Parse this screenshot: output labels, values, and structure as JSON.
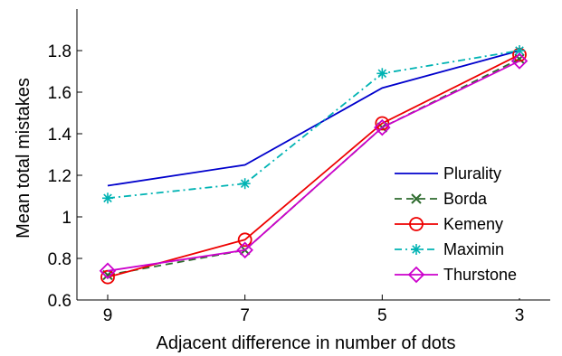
{
  "chart_data": {
    "type": "line",
    "title": "",
    "xlabel": "Adjacent difference in number of dots",
    "ylabel": "Mean total mistakes",
    "categories": [
      "9",
      "7",
      "5",
      "3"
    ],
    "ylim": [
      0.6,
      2.0
    ],
    "yticks": [
      0.6,
      0.8,
      1,
      1.2,
      1.4,
      1.6,
      1.8
    ],
    "ytick_labels": [
      "0.6",
      "0.8",
      "1",
      "1.2",
      "1.4",
      "1.6",
      "1.8"
    ],
    "grid": false,
    "legend_position": "lower-right",
    "series": [
      {
        "name": "Plurality",
        "values": [
          1.15,
          1.25,
          1.62,
          1.8
        ],
        "color": "#0000cc",
        "dash": "solid",
        "marker": "none"
      },
      {
        "name": "Borda",
        "values": [
          0.72,
          0.84,
          1.43,
          1.76
        ],
        "color": "#2e6b2e",
        "dash": "dashed",
        "marker": "x"
      },
      {
        "name": "Kemeny",
        "values": [
          0.71,
          0.89,
          1.45,
          1.78
        ],
        "color": "#ee0000",
        "dash": "solid",
        "marker": "circle"
      },
      {
        "name": "Maximin",
        "values": [
          1.09,
          1.16,
          1.69,
          1.8
        ],
        "color": "#00b3b3",
        "dash": "dashdot",
        "marker": "asterisk"
      },
      {
        "name": "Thurstone",
        "values": [
          0.74,
          0.84,
          1.43,
          1.75
        ],
        "color": "#cc00cc",
        "dash": "solid",
        "marker": "diamond"
      }
    ]
  }
}
